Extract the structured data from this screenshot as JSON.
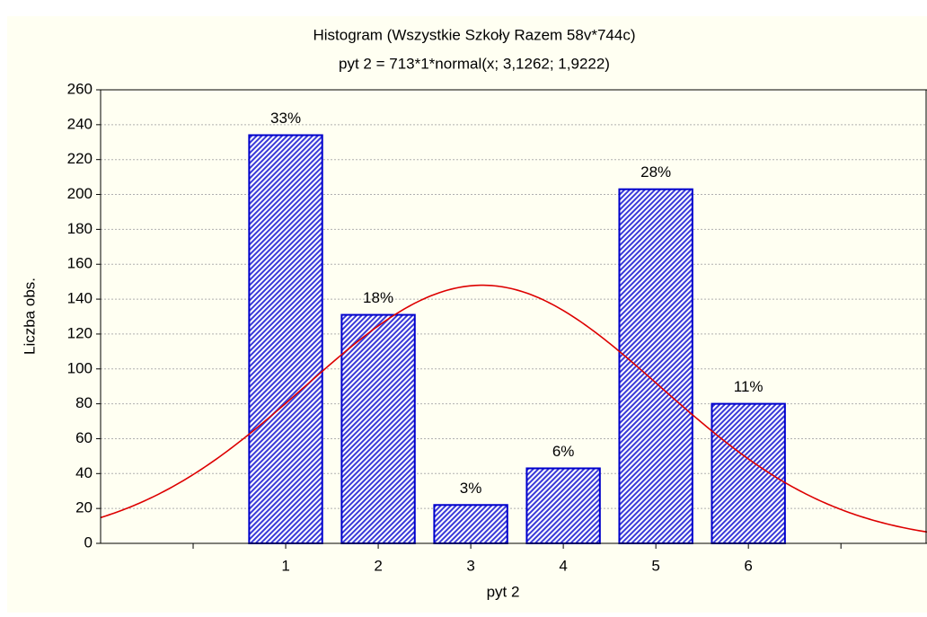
{
  "chart_data": {
    "type": "histogram",
    "title": "Histogram (Wszystkie Szkoły  Razem 58v*744c)",
    "subtitle": "pyt 2 = 713*1*normal(x; 3,1262; 1,9222)",
    "x_label": "pyt 2",
    "y_label": "Liczba obs.",
    "x": [
      1,
      2,
      3,
      4,
      5,
      6
    ],
    "values": [
      234,
      131,
      22,
      43,
      203,
      80
    ],
    "percent_labels": [
      "33%",
      "18%",
      "3%",
      "6%",
      "28%",
      "11%"
    ],
    "bar_width": 0.79,
    "color": "#0000cc",
    "fit": {
      "n": 713,
      "bin_width": 1,
      "mean": 3.1262,
      "sd": 1.9222,
      "color": "#dd0000"
    },
    "xlim": [
      -1,
      7.93
    ],
    "xticks": [
      1,
      2,
      3,
      4,
      5,
      6
    ],
    "xticks_unlabeled": [
      0,
      7
    ],
    "ylim": [
      0,
      260
    ],
    "yticks": [
      0,
      20,
      40,
      60,
      80,
      100,
      120,
      140,
      160,
      180,
      200,
      220,
      240,
      260
    ],
    "grid": true
  }
}
